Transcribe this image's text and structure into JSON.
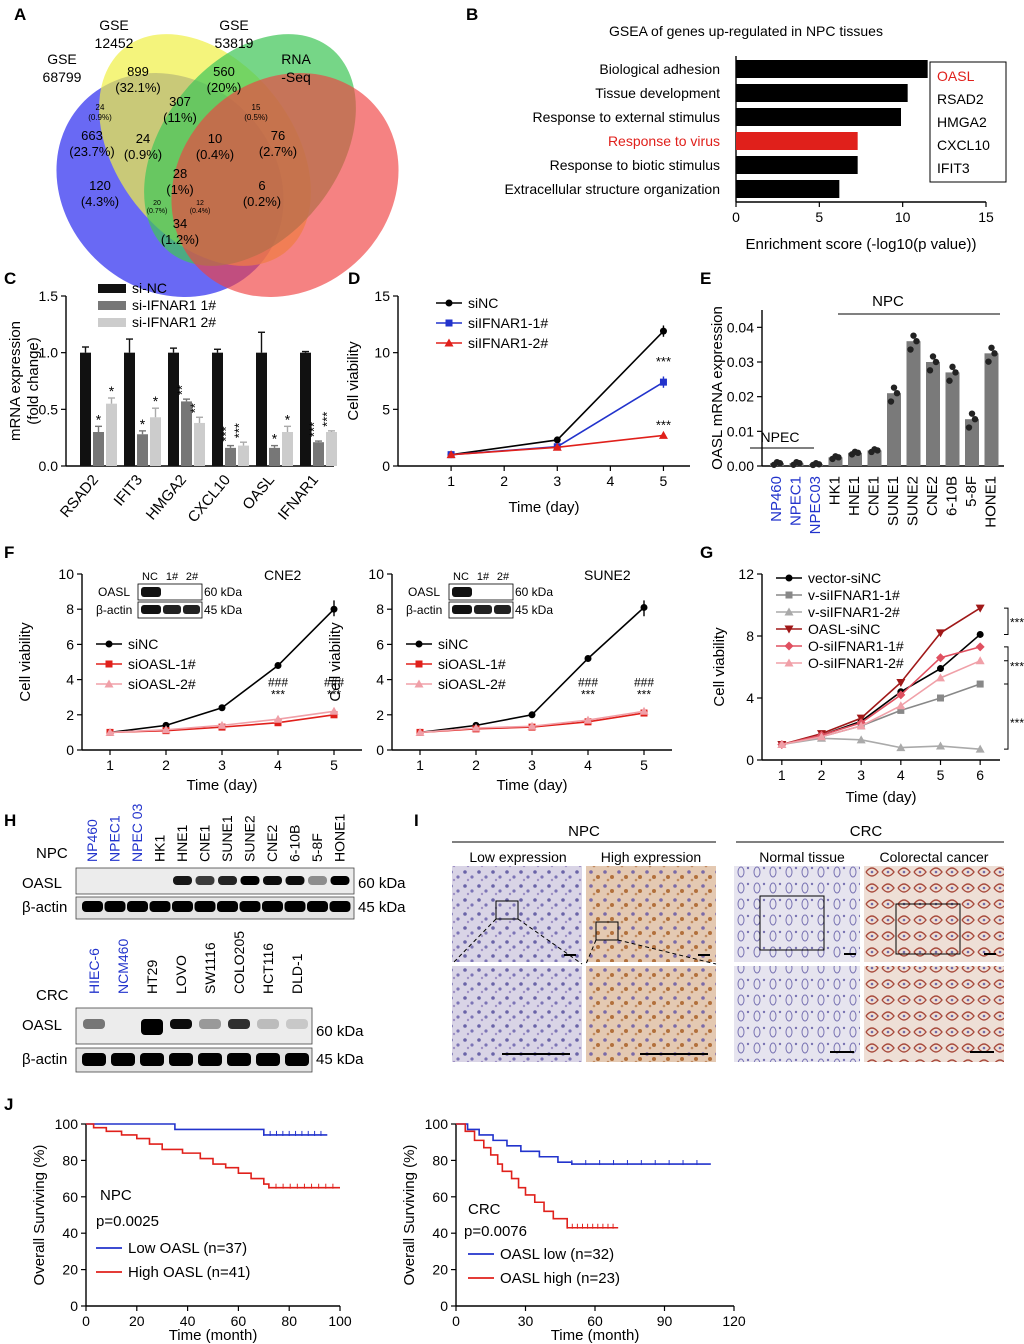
{
  "panels": {
    "A": {
      "letter": "A",
      "set_labels": [
        {
          "line1": "GSE",
          "line2": "68799"
        },
        {
          "line1": "GSE",
          "line2": "12452"
        },
        {
          "line1": "GSE",
          "line2": "53819"
        },
        {
          "line1": "RNA",
          "line2": "-Seq"
        }
      ],
      "regions": [
        {
          "n": "663",
          "p": "(23.7%)"
        },
        {
          "n": "899",
          "p": "(32.1%)"
        },
        {
          "n": "560",
          "p": "(20%)"
        },
        {
          "n": "76",
          "p": "(2.7%)"
        },
        {
          "n": "24",
          "p": "(0.9%)"
        },
        {
          "n": "307",
          "p": "(11%)"
        },
        {
          "n": "15",
          "p": "(0.5%)"
        },
        {
          "n": "24",
          "p": "(0.9%)"
        },
        {
          "n": "10",
          "p": "(0.4%)"
        },
        {
          "n": "28",
          "p": "(1%)"
        },
        {
          "n": "120",
          "p": "(4.3%)"
        },
        {
          "n": "6",
          "p": "(0.2%)"
        },
        {
          "n": "20",
          "p": "(0.7%)"
        },
        {
          "n": "12",
          "p": "(0.4%)"
        },
        {
          "n": "34",
          "p": "(1.2%)"
        }
      ]
    },
    "B": {
      "letter": "B",
      "legend_genes": [
        "OASL",
        "RSAD2",
        "HMGA2",
        "CXCL10",
        "IFIT3"
      ]
    },
    "C": {
      "letter": "C",
      "xcats": [
        "RSAD2",
        "IFIT3",
        "HMGA2",
        "CXCL10",
        "OASL",
        "IFNAR1"
      ],
      "star": "*",
      "stars2": "**",
      "stars3": "***"
    },
    "D": {
      "letter": "D",
      "sig": "***"
    },
    "E": {
      "letter": "E",
      "npc_label": "NPC",
      "npec_label": "NPEC"
    },
    "F": {
      "letter": "F",
      "cell_lines": [
        "CNE2",
        "SUNE2"
      ],
      "blot_lanes": [
        "NC",
        "1#",
        "2#"
      ],
      "blot_rows": [
        "OASL",
        "β-actin"
      ],
      "blot_kda": [
        "60 kDa",
        "45 kDa"
      ],
      "hash": "###",
      "sig": "***"
    },
    "G": {
      "letter": "G",
      "sig": "***"
    },
    "H": {
      "letter": "H",
      "npc_row_label": "NPC",
      "crc_row_label": "CRC",
      "npc_lanes": [
        "NP460",
        "NPEC1",
        "NPEC 03",
        "HK1",
        "HNE1",
        "CNE1",
        "SUNE1",
        "SUNE2",
        "CNE2",
        "6-10B",
        "5-8F",
        "HONE1"
      ],
      "crc_lanes": [
        "HIEC-6",
        "NCM460",
        "HT29",
        "LOVO",
        "SW1116",
        "COLO205",
        "HCT116",
        "DLD-1"
      ],
      "rows": [
        "OASL",
        "β-actin"
      ],
      "kda": [
        "60 kDa",
        "45 kDa"
      ]
    },
    "I": {
      "letter": "I",
      "npc_title": "NPC",
      "crc_title": "CRC",
      "sub_labels": [
        "Low expression",
        "High expression",
        "Normal tissue",
        "Colorectal cancer"
      ]
    },
    "J": {
      "letter": "J",
      "npc_name": "NPC",
      "npc_p": "p=0.0025",
      "crc_name": "CRC",
      "crc_p": "p=0.0076"
    }
  },
  "colors": {
    "blue": "#2233cc",
    "red": "#e0201b",
    "darkred": "#a01818",
    "black": "#000000",
    "grey": "#888888",
    "lightgrey": "#cccccc",
    "pink": "#f0a0a8"
  },
  "chart_data": [
    {
      "panel": "B",
      "type": "bar",
      "orientation": "horizontal",
      "title": "GSEA of genes up-regulated in NPC tissues",
      "categories": [
        "Biological adhesion",
        "Tissue  development",
        "Response to external stimulus",
        "Response to virus",
        "Response to biotic stimulus",
        "Extracellular structure organization"
      ],
      "values": [
        11.5,
        10.3,
        9.9,
        7.3,
        7.3,
        6.2
      ],
      "highlight_index": 3,
      "xlabel": "Enrichment score (-log10(p value))",
      "xlim": [
        0,
        15
      ],
      "xticks": [
        0,
        5,
        10,
        15
      ]
    },
    {
      "panel": "C",
      "type": "bar",
      "categories": [
        "RSAD2",
        "IFIT3",
        "HMGA2",
        "CXCL10",
        "OASL",
        "IFNAR1"
      ],
      "series": [
        {
          "name": "si-NC",
          "values": [
            1.0,
            1.0,
            1.0,
            1.0,
            1.0,
            1.0
          ],
          "errors": [
            0.05,
            0.12,
            0.04,
            0.03,
            0.18,
            0.01
          ]
        },
        {
          "name": "si-IFNAR1 1#",
          "values": [
            0.3,
            0.28,
            0.57,
            0.16,
            0.16,
            0.21
          ],
          "errors": [
            0.05,
            0.03,
            0.02,
            0.02,
            0.02,
            0.01
          ]
        },
        {
          "name": "si-IFNAR1 2#",
          "values": [
            0.55,
            0.43,
            0.38,
            0.18,
            0.3,
            0.3
          ],
          "errors": [
            0.05,
            0.08,
            0.05,
            0.03,
            0.05,
            0.01
          ]
        }
      ],
      "ylabel": "mRNA expression\n(fold change)",
      "ylim": [
        0,
        1.5
      ],
      "yticks": [
        0.0,
        0.5,
        1.0,
        1.5
      ]
    },
    {
      "panel": "D",
      "type": "line",
      "x": [
        1,
        3,
        5
      ],
      "series": [
        {
          "name": "siNC",
          "values": [
            1.0,
            2.3,
            11.9
          ]
        },
        {
          "name": "siIFNAR1-1#",
          "values": [
            1.0,
            1.7,
            7.4
          ]
        },
        {
          "name": "siIFNAR1-2#",
          "values": [
            1.0,
            1.65,
            2.7
          ]
        }
      ],
      "xlabel": "Time (day)",
      "ylabel": "Cell viability",
      "xlim": [
        0,
        5.5
      ],
      "xticks": [
        1,
        2,
        3,
        4,
        5
      ],
      "ylim": [
        0,
        15
      ],
      "yticks": [
        0,
        5,
        10,
        15
      ]
    },
    {
      "panel": "E",
      "type": "bar",
      "categories": [
        "NP460",
        "NPEC1",
        "NPEC03",
        "HK1",
        "HNE1",
        "CNE1",
        "SUNE1",
        "SUNE2",
        "CNE2",
        "6-10B",
        "5-8F",
        "HONE1"
      ],
      "values": [
        0.0008,
        0.0008,
        0.0005,
        0.0025,
        0.0038,
        0.0045,
        0.021,
        0.036,
        0.03,
        0.027,
        0.0135,
        0.0325
      ],
      "ylabel": "OASL mRNA expression",
      "ylim": [
        0,
        0.045
      ],
      "yticks": [
        0.0,
        0.01,
        0.02,
        0.03,
        0.04
      ]
    },
    {
      "panel": "F-CNE2",
      "type": "line",
      "x": [
        1,
        2,
        3,
        4,
        5
      ],
      "series": [
        {
          "name": "siNC",
          "values": [
            1.0,
            1.4,
            2.4,
            4.8,
            8.0
          ]
        },
        {
          "name": "siOASL-1#",
          "values": [
            1.0,
            1.1,
            1.3,
            1.55,
            2.0
          ]
        },
        {
          "name": "siOASL-2#",
          "values": [
            1.0,
            1.15,
            1.4,
            1.75,
            2.2
          ]
        }
      ],
      "xlabel": "Time (day)",
      "ylabel": "Cell viability",
      "xlim": [
        0.5,
        5.5
      ],
      "xticks": [
        1,
        2,
        3,
        4,
        5
      ],
      "ylim": [
        0,
        10
      ],
      "yticks": [
        0,
        2,
        4,
        6,
        8,
        10
      ]
    },
    {
      "panel": "F-SUNE2",
      "type": "line",
      "x": [
        1,
        2,
        3,
        4,
        5
      ],
      "series": [
        {
          "name": "siNC",
          "values": [
            1.0,
            1.4,
            2.0,
            5.2,
            8.1
          ]
        },
        {
          "name": "siOASL-1#",
          "values": [
            1.0,
            1.2,
            1.3,
            1.6,
            2.1
          ]
        },
        {
          "name": "siOASL-2#",
          "values": [
            1.0,
            1.25,
            1.35,
            1.7,
            2.2
          ]
        }
      ],
      "xlabel": "Time (day)",
      "ylabel": "Cell viability",
      "xlim": [
        0.5,
        5.5
      ],
      "xticks": [
        1,
        2,
        3,
        4,
        5
      ],
      "ylim": [
        0,
        10
      ],
      "yticks": [
        0,
        2,
        4,
        6,
        8,
        10
      ]
    },
    {
      "panel": "G",
      "type": "line",
      "x": [
        1,
        2,
        3,
        4,
        5,
        6
      ],
      "series": [
        {
          "name": "vector-siNC",
          "values": [
            1.0,
            1.6,
            2.5,
            4.4,
            5.9,
            8.1
          ]
        },
        {
          "name": "v-siIFNAR1-1#",
          "values": [
            1.0,
            1.5,
            2.2,
            3.2,
            4.0,
            4.9
          ]
        },
        {
          "name": "v-siIFNAR1-2#",
          "values": [
            1.0,
            1.4,
            1.3,
            0.8,
            0.9,
            0.7
          ]
        },
        {
          "name": "OASL-siNC",
          "values": [
            1.0,
            1.7,
            2.7,
            5.0,
            8.2,
            9.8
          ]
        },
        {
          "name": "O-siIFNAR1-1#",
          "values": [
            1.0,
            1.6,
            2.4,
            4.2,
            6.6,
            7.3
          ]
        },
        {
          "name": "O-siIFNAR1-2#",
          "values": [
            1.0,
            1.5,
            2.2,
            3.5,
            5.3,
            6.4
          ]
        }
      ],
      "xlabel": "Time (day)",
      "ylabel": "Cell viability",
      "xlim": [
        0.5,
        6.5
      ],
      "xticks": [
        1,
        2,
        3,
        4,
        5,
        6
      ],
      "ylim": [
        0,
        12
      ],
      "yticks": [
        0,
        4,
        8,
        12
      ]
    },
    {
      "panel": "J-NPC",
      "type": "line",
      "series": [
        {
          "name": "Low OASL (n=37)",
          "points": [
            [
              0,
              100
            ],
            [
              35,
              100
            ],
            [
              35,
              97
            ],
            [
              70,
              97
            ],
            [
              70,
              94
            ],
            [
              95,
              94
            ]
          ]
        },
        {
          "name": "High OASL (n=41)",
          "points": [
            [
              0,
              100
            ],
            [
              3,
              100
            ],
            [
              3,
              98
            ],
            [
              8,
              98
            ],
            [
              8,
              96
            ],
            [
              14,
              96
            ],
            [
              14,
              94
            ],
            [
              20,
              94
            ],
            [
              20,
              92
            ],
            [
              25,
              92
            ],
            [
              25,
              89
            ],
            [
              30,
              89
            ],
            [
              30,
              86
            ],
            [
              38,
              86
            ],
            [
              38,
              84
            ],
            [
              45,
              84
            ],
            [
              45,
              81
            ],
            [
              50,
              81
            ],
            [
              50,
              78
            ],
            [
              55,
              78
            ],
            [
              55,
              76
            ],
            [
              60,
              76
            ],
            [
              60,
              73
            ],
            [
              65,
              73
            ],
            [
              65,
              70
            ],
            [
              70,
              70
            ],
            [
              70,
              67
            ],
            [
              72,
              67
            ],
            [
              72,
              65
            ],
            [
              100,
              65
            ]
          ]
        }
      ],
      "xlabel": "Time (month)",
      "ylabel": "Overall Surviving (%)",
      "xlim": [
        0,
        100
      ],
      "xticks": [
        0,
        20,
        40,
        60,
        80,
        100
      ],
      "ylim": [
        0,
        100
      ],
      "yticks": [
        0,
        20,
        40,
        60,
        80,
        100
      ]
    },
    {
      "panel": "J-CRC",
      "type": "line",
      "series": [
        {
          "name": "OASL low (n=32)",
          "points": [
            [
              0,
              100
            ],
            [
              5,
              100
            ],
            [
              5,
              97
            ],
            [
              10,
              97
            ],
            [
              10,
              94
            ],
            [
              16,
              94
            ],
            [
              16,
              91
            ],
            [
              22,
              91
            ],
            [
              22,
              88
            ],
            [
              28,
              88
            ],
            [
              28,
              85
            ],
            [
              36,
              85
            ],
            [
              36,
              82
            ],
            [
              44,
              82
            ],
            [
              44,
              79
            ],
            [
              50,
              79
            ],
            [
              50,
              78
            ],
            [
              110,
              78
            ]
          ]
        },
        {
          "name": "OASL high (n=23)",
          "points": [
            [
              0,
              100
            ],
            [
              4,
              100
            ],
            [
              4,
              96
            ],
            [
              8,
              96
            ],
            [
              8,
              91
            ],
            [
              12,
              91
            ],
            [
              12,
              87
            ],
            [
              15,
              87
            ],
            [
              15,
              83
            ],
            [
              18,
              83
            ],
            [
              18,
              78
            ],
            [
              20,
              78
            ],
            [
              20,
              74
            ],
            [
              24,
              74
            ],
            [
              24,
              70
            ],
            [
              27,
              70
            ],
            [
              27,
              65
            ],
            [
              30,
              65
            ],
            [
              30,
              61
            ],
            [
              34,
              61
            ],
            [
              34,
              57
            ],
            [
              38,
              57
            ],
            [
              38,
              52
            ],
            [
              42,
              52
            ],
            [
              42,
              48
            ],
            [
              48,
              48
            ],
            [
              48,
              43
            ],
            [
              70,
              43
            ]
          ]
        }
      ],
      "xlabel": "Time (month)",
      "ylabel": "Overall Surviving (%)",
      "xlim": [
        0,
        120
      ],
      "xticks": [
        0,
        30,
        60,
        90,
        120
      ],
      "ylim": [
        0,
        100
      ],
      "yticks": [
        0,
        20,
        40,
        60,
        80,
        100
      ]
    }
  ]
}
